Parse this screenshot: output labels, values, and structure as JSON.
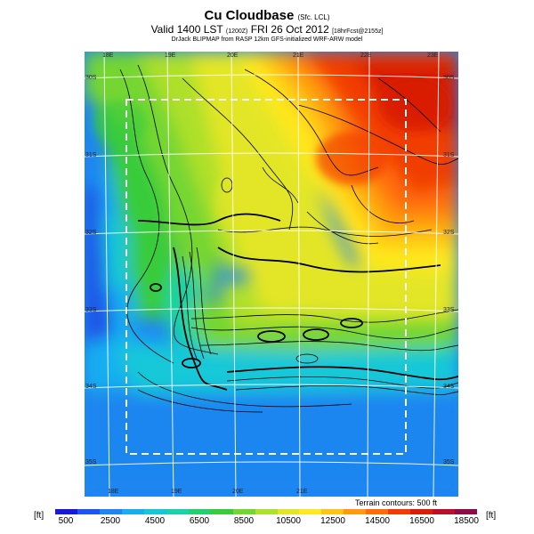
{
  "header": {
    "title": "Cu Cloudbase",
    "title_suffix": "(Sfc. LCL)",
    "valid": "Valid 1400 LST",
    "valid_utc": "(1200Z)",
    "date": "FRI 26 Oct 2012",
    "forecast_info": "[18hrFcst@2155z]",
    "credit": "DrJack BLIPMAP from RASP 12km GFS-initialized WRF-ARW model"
  },
  "map": {
    "lon_labels_top": [
      "18E",
      "19E",
      "20E",
      "21E",
      "22E",
      "23E"
    ],
    "lon_labels_bottom": [
      "18E",
      "19E",
      "20E",
      "21E"
    ],
    "lat_labels_left": [
      "30S",
      "31S",
      "32S",
      "33S",
      "34S",
      "35S"
    ],
    "lat_labels_right": [
      "30S",
      "31S",
      "32S",
      "33S",
      "34S",
      "35S"
    ],
    "terrain_note": "Terrain contours: 500 ft"
  },
  "colorbar": {
    "unit_left": "[ft]",
    "unit_right": "[ft]",
    "tick_labels": [
      "500",
      "2500",
      "4500",
      "6500",
      "8500",
      "10500",
      "12500",
      "14500",
      "16500",
      "18500"
    ],
    "colors": [
      "#1a1ad6",
      "#1f55e8",
      "#1f86f0",
      "#17aef0",
      "#14c8d8",
      "#19d3a8",
      "#22d070",
      "#39cc3a",
      "#74d630",
      "#aee02c",
      "#e3e626",
      "#ffe81f",
      "#ffc414",
      "#ff9a0e",
      "#ff6c0a",
      "#f23c06",
      "#d81e06",
      "#b8102a",
      "#8d0c47"
    ]
  }
}
